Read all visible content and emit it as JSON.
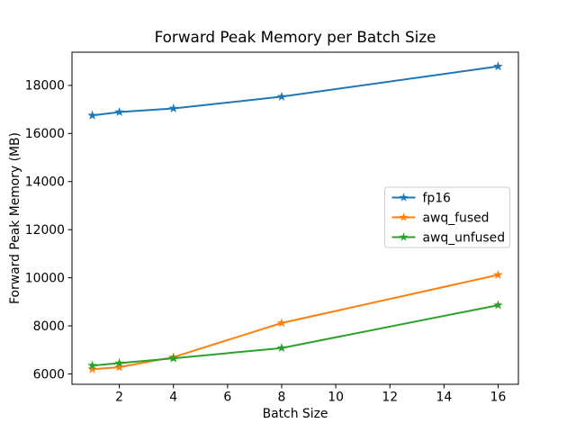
{
  "chart_data": {
    "type": "line",
    "title": "Forward Peak Memory per Batch Size",
    "xlabel": "Batch Size",
    "ylabel": "Forward Peak Memory (MB)",
    "x": [
      1,
      2,
      4,
      8,
      16
    ],
    "series": [
      {
        "name": "fp16",
        "color": "#1f77b4",
        "values": [
          16750,
          16890,
          17040,
          17530,
          18790
        ]
      },
      {
        "name": "awq_fused",
        "color": "#ff7f0e",
        "values": [
          6200,
          6280,
          6700,
          8120,
          10120
        ]
      },
      {
        "name": "awq_unfused",
        "color": "#2ca02c",
        "values": [
          6350,
          6450,
          6650,
          7080,
          8860
        ]
      }
    ],
    "xticks": [
      2,
      4,
      6,
      8,
      10,
      12,
      14,
      16
    ],
    "yticks": [
      6000,
      8000,
      10000,
      12000,
      14000,
      16000,
      18000
    ],
    "xlim": [
      0.25,
      16.75
    ],
    "ylim": [
      5570,
      19380
    ],
    "marker": "star",
    "grid": false,
    "legend_position": "center right",
    "background_color": "#ffffff",
    "spine_color": "#000000",
    "legend_border_color": "#cccccc"
  }
}
